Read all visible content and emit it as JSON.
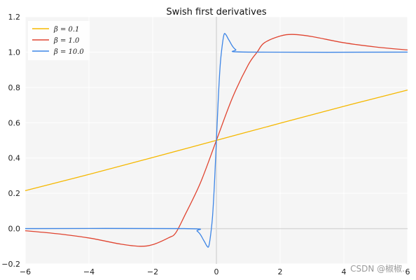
{
  "chart_data": {
    "type": "line",
    "title": "Swish first derivatives",
    "xlabel": "",
    "ylabel": "",
    "xlim": [
      -6,
      6
    ],
    "ylim": [
      -0.2,
      1.2
    ],
    "x_ticks": [
      -6,
      -4,
      -2,
      0,
      2,
      4,
      6
    ],
    "x_tick_labels": [
      "−6",
      "−4",
      "−2",
      "0",
      "2",
      "4",
      "6"
    ],
    "y_ticks": [
      -0.2,
      0.0,
      0.2,
      0.4,
      0.6,
      0.8,
      1.0,
      1.2
    ],
    "y_tick_labels": [
      "−0.2",
      "0.0",
      "0.2",
      "0.4",
      "0.6",
      "0.8",
      "1.0",
      "1.2"
    ],
    "grid": true,
    "legend_position": "top-left",
    "series": [
      {
        "name": "β = 0.1",
        "color": "#f5b800",
        "x": [
          -6,
          -4,
          -2,
          0,
          2,
          4,
          6
        ],
        "y": [
          0.215,
          0.307,
          0.403,
          0.5,
          0.597,
          0.693,
          0.785
        ]
      },
      {
        "name": "β = 1.0",
        "color": "#e04430",
        "x": [
          -6,
          -5,
          -4,
          -3,
          -2.4,
          -2,
          -1.5,
          -1.28,
          -1,
          -0.5,
          0,
          0.5,
          1,
          1.28,
          1.5,
          2,
          2.4,
          3,
          4,
          5,
          6
        ],
        "y": [
          -0.012,
          -0.029,
          -0.053,
          -0.088,
          -0.1,
          -0.091,
          -0.052,
          -0.025,
          0.072,
          0.26,
          0.5,
          0.74,
          0.928,
          1.0,
          1.052,
          1.091,
          1.1,
          1.088,
          1.053,
          1.029,
          1.012
        ]
      },
      {
        "name": "β = 10.0",
        "color": "#3d85e6",
        "x": [
          -6,
          -1,
          -0.6,
          -0.4,
          -0.3,
          -0.24,
          -0.18,
          -0.12,
          -0.06,
          0,
          0.06,
          0.12,
          0.18,
          0.24,
          0.3,
          0.4,
          0.6,
          1,
          6
        ],
        "y": [
          0.0,
          0.0,
          -0.015,
          -0.066,
          -0.098,
          -0.1,
          -0.034,
          0.072,
          0.26,
          0.5,
          0.74,
          0.928,
          1.034,
          1.1,
          1.098,
          1.066,
          1.015,
          1.0,
          1.0
        ]
      }
    ]
  },
  "watermark": "CSDN @椒椒."
}
